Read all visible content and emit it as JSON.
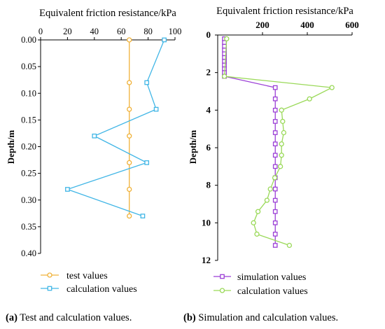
{
  "chart_data": [
    {
      "type": "line",
      "panel": "a",
      "title": "Equivalent friction resistance/kPa",
      "xlabel": "Equivalent friction resistance/kPa",
      "ylabel": "Depth/m",
      "xlim": [
        0,
        100
      ],
      "ylim": [
        0,
        0.4
      ],
      "x_axis_position": "top",
      "y_inverted": true,
      "x_ticks": [
        "0",
        "20",
        "40",
        "60",
        "80",
        "100"
      ],
      "y_ticks": [
        "0.00",
        "0.05",
        "0.10",
        "0.15",
        "0.20",
        "0.25",
        "0.30",
        "0.35",
        "0.40"
      ],
      "grid": false,
      "legend_position": "bottom-left",
      "series": [
        {
          "name": "test values",
          "color": "#f0b23a",
          "marker": "circle",
          "points": [
            [
              66,
              0.0
            ],
            [
              66,
              0.08
            ],
            [
              66,
              0.13
            ],
            [
              66,
              0.18
            ],
            [
              66,
              0.23
            ],
            [
              66,
              0.28
            ],
            [
              66,
              0.33
            ]
          ]
        },
        {
          "name": "calculation values",
          "color": "#41b6e6",
          "marker": "square",
          "points": [
            [
              92,
              0.0
            ],
            [
              79,
              0.08
            ],
            [
              86,
              0.13
            ],
            [
              40,
              0.18
            ],
            [
              79,
              0.23
            ],
            [
              20,
              0.28
            ],
            [
              76,
              0.33
            ]
          ]
        }
      ],
      "caption_label": "(a)",
      "caption_text": " Test and calculation values."
    },
    {
      "type": "line",
      "panel": "b",
      "title": "Equivalent friction resistance/kPa",
      "xlabel": "Equivalent friction resistance/kPa",
      "ylabel": "Depth/m",
      "xlim": [
        0,
        600
      ],
      "ylim": [
        0,
        12
      ],
      "x_axis_position": "top",
      "y_inverted": true,
      "x_ticks": [
        "200",
        "400",
        "600"
      ],
      "y_ticks": [
        "0",
        "2",
        "4",
        "6",
        "8",
        "10",
        "12"
      ],
      "grid": false,
      "legend_position": "bottom-left",
      "series": [
        {
          "name": "simulation values",
          "color": "#9b3fd6",
          "marker": "square",
          "points": [
            [
              30,
              0.2
            ],
            [
              30,
              0.4
            ],
            [
              30,
              0.6
            ],
            [
              30,
              0.8
            ],
            [
              30,
              1.0
            ],
            [
              30,
              1.2
            ],
            [
              30,
              1.4
            ],
            [
              30,
              1.6
            ],
            [
              30,
              1.8
            ],
            [
              30,
              2.0
            ],
            [
              30,
              2.2
            ],
            [
              257,
              2.8
            ],
            [
              257,
              3.4
            ],
            [
              257,
              4.0
            ],
            [
              257,
              4.6
            ],
            [
              257,
              5.2
            ],
            [
              257,
              5.8
            ],
            [
              257,
              6.4
            ],
            [
              257,
              7.0
            ],
            [
              257,
              7.6
            ],
            [
              257,
              8.2
            ],
            [
              257,
              8.8
            ],
            [
              257,
              9.4
            ],
            [
              257,
              10.0
            ],
            [
              257,
              10.6
            ],
            [
              257,
              11.2
            ]
          ]
        },
        {
          "name": "calculation values",
          "color": "#9ad958",
          "marker": "circle",
          "points": [
            [
              40,
              0.2
            ],
            [
              30,
              2.2
            ],
            [
              510,
              2.8
            ],
            [
              410,
              3.4
            ],
            [
              285,
              4.0
            ],
            [
              290,
              4.6
            ],
            [
              295,
              5.2
            ],
            [
              285,
              5.8
            ],
            [
              285,
              6.4
            ],
            [
              280,
              7.0
            ],
            [
              255,
              7.6
            ],
            [
              235,
              8.2
            ],
            [
              220,
              8.8
            ],
            [
              180,
              9.4
            ],
            [
              160,
              10.0
            ],
            [
              175,
              10.6
            ],
            [
              320,
              11.2
            ]
          ]
        }
      ],
      "caption_label": "(b)",
      "caption_text": " Simulation and calculation values."
    }
  ]
}
